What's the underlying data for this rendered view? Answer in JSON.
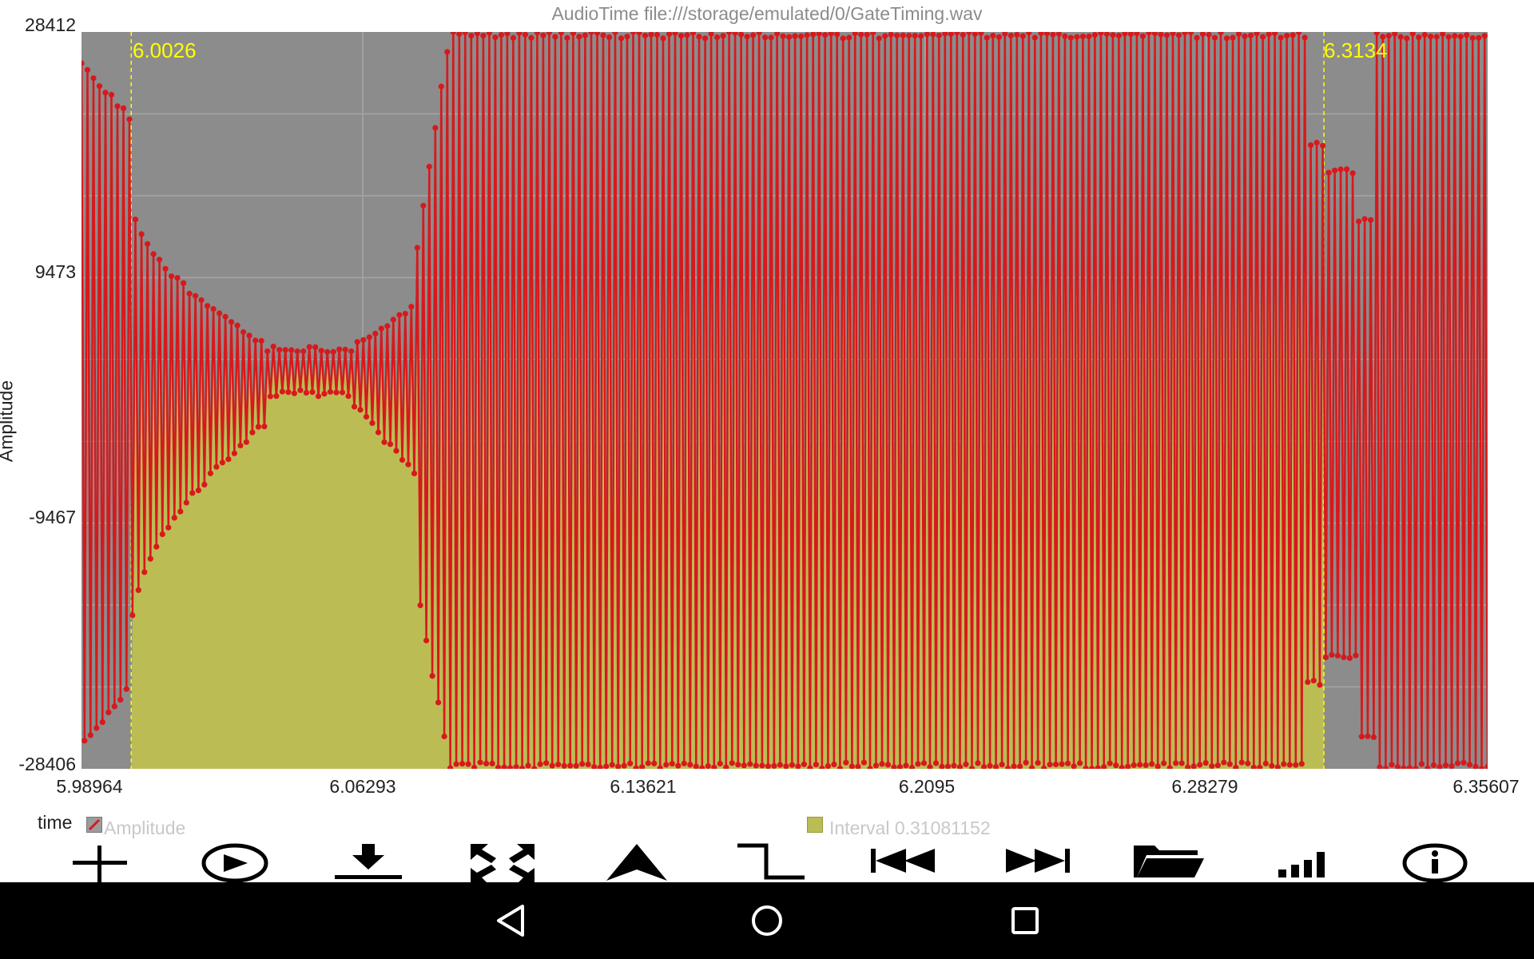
{
  "app": {
    "title": "AudioTime file:///storage/emulated/0/GateTiming.wav"
  },
  "chart_data": {
    "type": "line",
    "ylabel": "Amplitude",
    "xlabel": "time",
    "x_ticks": [
      "5.98964",
      "6.06293",
      "6.13621",
      "6.2095",
      "6.28279",
      "6.35607"
    ],
    "y_ticks": [
      "28412",
      "9473",
      "-9467",
      "-28406"
    ],
    "xlim": [
      5.98964,
      6.35607
    ],
    "ylim": [
      -28406,
      28412
    ],
    "grid": true,
    "series": [
      {
        "name": "Amplitude",
        "color": "#d7191c",
        "description_segments": [
          {
            "t_start": 5.98964,
            "t_end": 6.0026,
            "pattern": "full-swing oscillation, upper envelope ~25000, lower ~-27000"
          },
          {
            "t_start": 6.0026,
            "t_end": 6.0375,
            "pattern": "decaying oscillation toward upper ~4000, lower ~-2000"
          },
          {
            "t_start": 6.0375,
            "t_end": 6.06,
            "pattern": "small oscillation between ~4500 and ~100"
          },
          {
            "t_start": 6.06,
            "t_end": 6.08,
            "pattern": "growing oscillation up to ~7000 / down to ~-7000"
          },
          {
            "t_start": 6.08,
            "t_end": 6.31,
            "pattern": "clipped full-scale oscillation 28412 / -28406"
          },
          {
            "t_start": 6.31,
            "t_end": 6.35607,
            "pattern": "oscillation with envelopes ~20000 / -26000 then full-scale"
          }
        ]
      }
    ],
    "interval": {
      "label": "Interval 0.31081152",
      "start": 6.0026,
      "end": 6.3134,
      "start_label": "6.0026",
      "end_label": "6.3134",
      "color": "#bcbc55"
    },
    "legend": [
      {
        "label": "Amplitude",
        "color": "#d7191c"
      },
      {
        "label": "Interval 0.31081152",
        "color": "#bcbc55"
      }
    ],
    "colors": {
      "plot_bg": "#8c8c8c",
      "interval_fill": "#bcbc55",
      "marker_text": "#ffff00",
      "line": "#d7191c"
    }
  },
  "legend_labels": {
    "time": "time",
    "amplitude": "Amplitude",
    "interval": "Interval 0.31081152"
  },
  "toolbar": [
    {
      "name": "add-icon"
    },
    {
      "name": "play-icon"
    },
    {
      "name": "download-icon"
    },
    {
      "name": "fit-screen-icon"
    },
    {
      "name": "peak-icon"
    },
    {
      "name": "step-icon"
    },
    {
      "name": "skip-back-icon"
    },
    {
      "name": "skip-forward-icon"
    },
    {
      "name": "folder-icon"
    },
    {
      "name": "signal-icon"
    },
    {
      "name": "info-icon"
    }
  ],
  "navbar": [
    {
      "name": "back-icon"
    },
    {
      "name": "home-icon"
    },
    {
      "name": "recents-icon"
    }
  ]
}
